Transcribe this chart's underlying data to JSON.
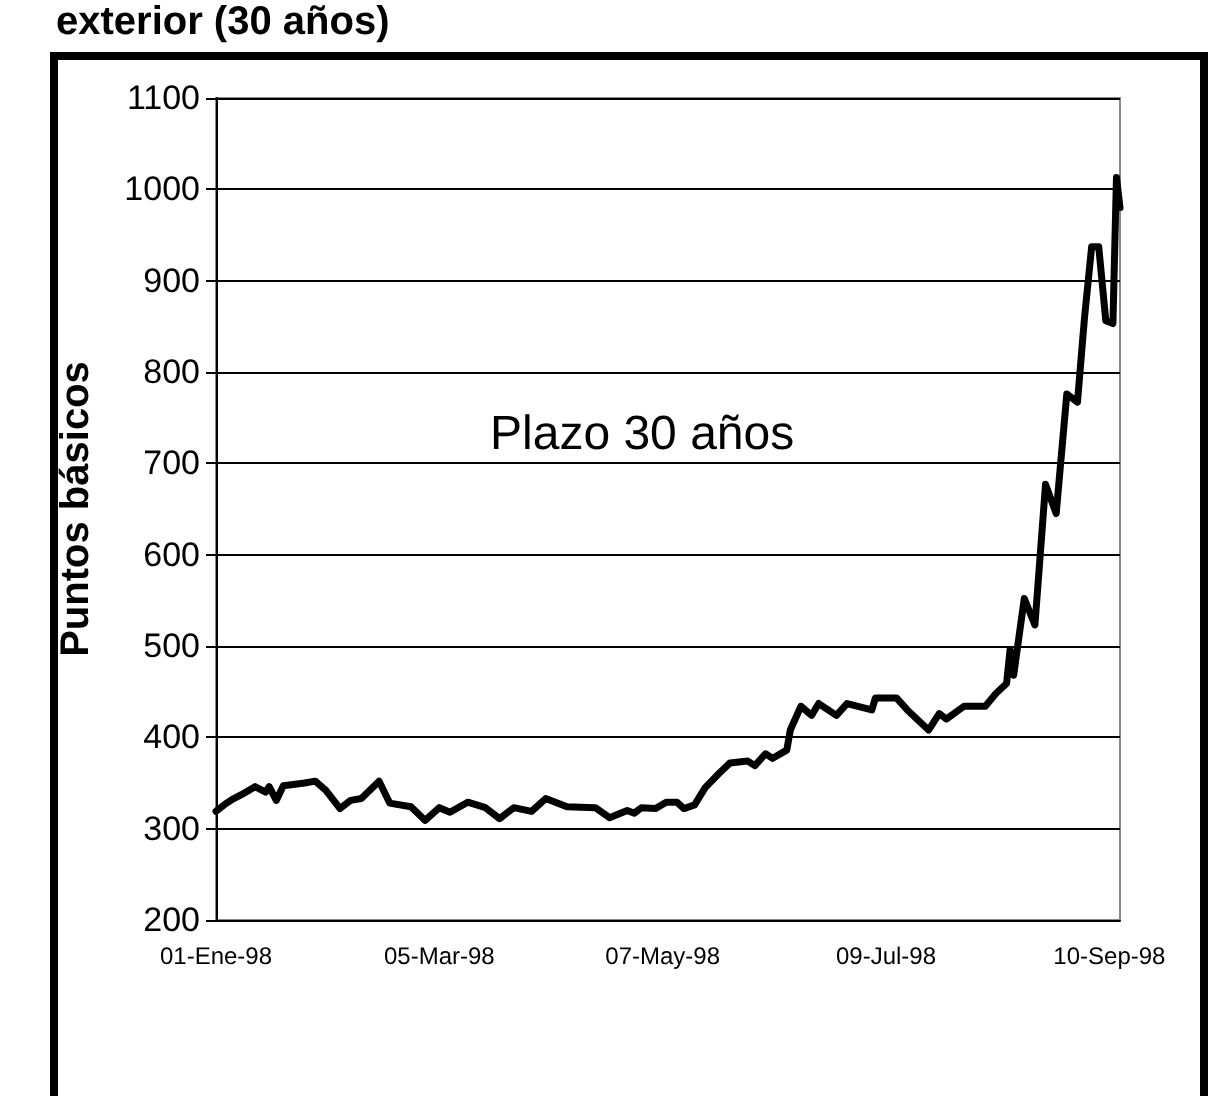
{
  "chart_data": {
    "type": "line",
    "title": "exterior (30 años)",
    "ylabel": "Puntos básicos",
    "annotations": [
      "Plazo 30 años"
    ],
    "x": [
      "1998-01-01",
      "1998-01-04",
      "1998-01-06",
      "1998-01-09",
      "1998-01-12",
      "1998-01-15",
      "1998-01-16",
      "1998-01-18",
      "1998-01-20",
      "1998-01-26",
      "1998-01-29",
      "1998-02-01",
      "1998-02-05",
      "1998-02-08",
      "1998-02-11",
      "1998-02-16",
      "1998-02-19",
      "1998-02-25",
      "1998-03-01",
      "1998-03-05",
      "1998-03-08",
      "1998-03-13",
      "1998-03-18",
      "1998-03-22",
      "1998-03-26",
      "1998-03-31",
      "1998-04-04",
      "1998-04-10",
      "1998-04-18",
      "1998-04-22",
      "1998-04-27",
      "1998-04-29",
      "1998-05-01",
      "1998-05-05",
      "1998-05-08",
      "1998-05-11",
      "1998-05-13",
      "1998-05-16",
      "1998-05-19",
      "1998-05-23",
      "1998-05-26",
      "1998-05-31",
      "1998-06-02",
      "1998-06-05",
      "1998-06-07",
      "1998-06-11",
      "1998-06-12",
      "1998-06-15",
      "1998-06-18",
      "1998-06-20",
      "1998-06-25",
      "1998-06-28",
      "1998-07-05",
      "1998-07-06",
      "1998-07-12",
      "1998-07-15",
      "1998-07-21",
      "1998-07-24",
      "1998-07-26",
      "1998-07-31",
      "1998-08-06",
      "1998-08-09",
      "1998-08-12",
      "1998-08-13",
      "1998-08-14",
      "1998-08-17",
      "1998-08-20",
      "1998-08-23",
      "1998-08-26",
      "1998-08-29",
      "1998-09-01",
      "1998-09-03",
      "1998-09-05",
      "1998-09-07",
      "1998-09-09",
      "1998-09-11",
      "1998-09-12",
      "1998-09-13"
    ],
    "series": [
      {
        "color": "#000000",
        "values": [
          319,
          328,
          333,
          339,
          346,
          340,
          346,
          331,
          347,
          350,
          352,
          342,
          322,
          331,
          333,
          352,
          328,
          324,
          309,
          323,
          318,
          329,
          323,
          311,
          323,
          319,
          333,
          324,
          323,
          312,
          320,
          317,
          323,
          322,
          329,
          329,
          322,
          326,
          345,
          361,
          372,
          374,
          369,
          382,
          377,
          386,
          408,
          434,
          424,
          437,
          424,
          437,
          430,
          443,
          443,
          430,
          408,
          426,
          420,
          434,
          434,
          448,
          459,
          496,
          468,
          552,
          523,
          677,
          645,
          776,
          767,
          860,
          937,
          937,
          856,
          853,
          1013,
          980
        ]
      }
    ],
    "xlim": [
      "1998-01-01",
      "1998-09-13"
    ],
    "xticks": [
      {
        "value": "1998-01-01",
        "label": "01-Ene-98"
      },
      {
        "value": "1998-03-05",
        "label": "05-Mar-98"
      },
      {
        "value": "1998-05-07",
        "label": "07-May-98"
      },
      {
        "value": "1998-07-09",
        "label": "09-Jul-98"
      },
      {
        "value": "1998-09-10",
        "label": "10-Sep-98"
      }
    ],
    "ylim": [
      200,
      1100
    ],
    "yticks": [
      200,
      300,
      400,
      500,
      600,
      700,
      800,
      900,
      1000,
      1100
    ],
    "grid": "y",
    "marker": "none",
    "line_style": "solid"
  }
}
